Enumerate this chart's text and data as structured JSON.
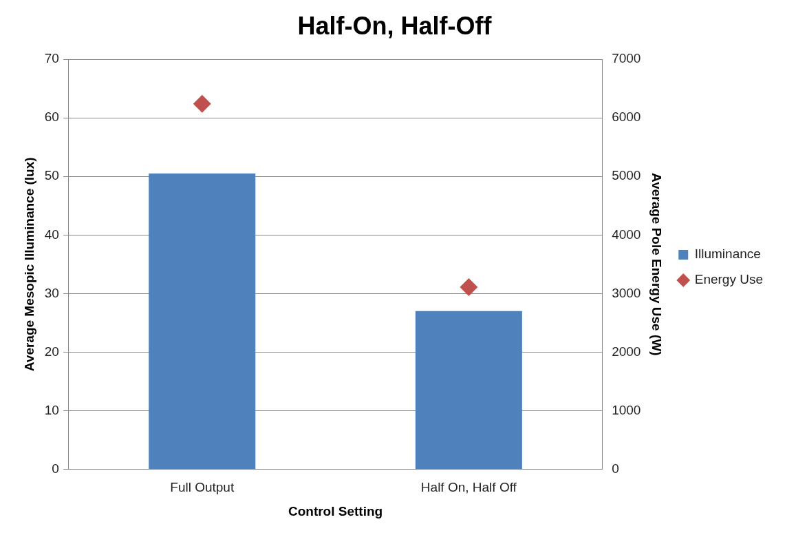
{
  "chart_data": {
    "type": "bar",
    "title": "Half-On, Half-Off",
    "xlabel": "Control Setting",
    "ylabel": "Average Mesopic Illuminance (lux)",
    "y2label": "Average Pole Energy Use (W)",
    "categories": [
      "Full Output",
      "Half On, Half Off"
    ],
    "series": [
      {
        "name": "Illuminance",
        "color": "#4f81bd",
        "values": [
          50.5,
          27
        ]
      },
      {
        "name": "Energy Use",
        "type": "scatter",
        "axis": "y2",
        "marker": "diamond",
        "color": "#c0504d",
        "values": [
          6240,
          3110
        ]
      }
    ],
    "ylim": [
      0,
      70
    ],
    "yticks": [
      0,
      10,
      20,
      30,
      40,
      50,
      60,
      70
    ],
    "y2lim": [
      0,
      7000
    ],
    "y2ticks": [
      0,
      1000,
      2000,
      3000,
      4000,
      5000,
      6000,
      7000
    ],
    "grid": "y",
    "legend": "right"
  }
}
